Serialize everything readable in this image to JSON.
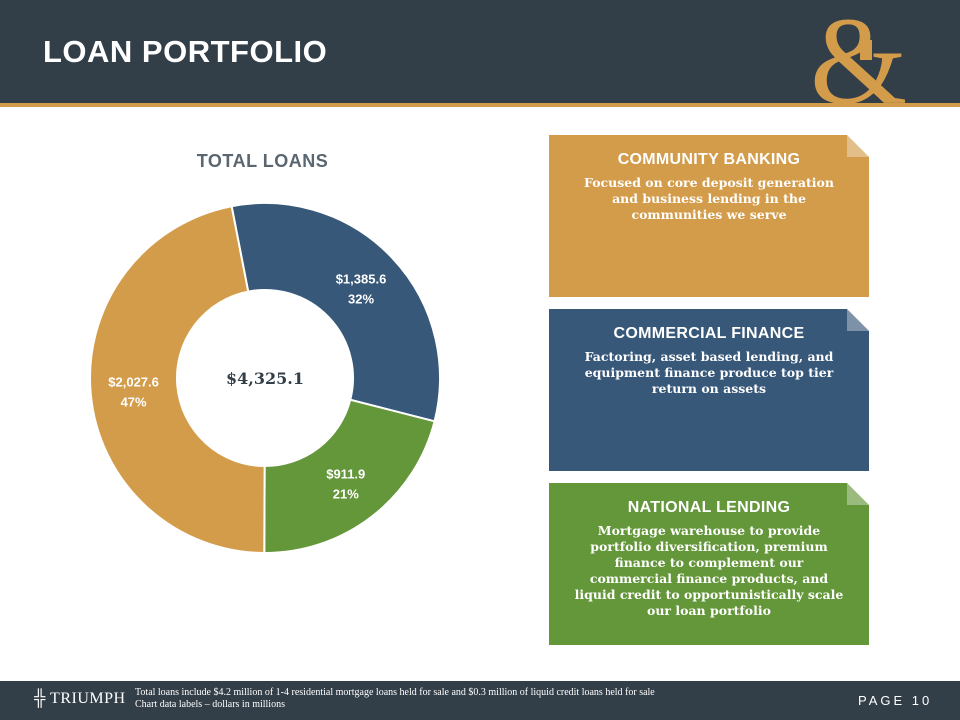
{
  "header": {
    "title": "LOAN PORTFOLIO"
  },
  "chart_data": {
    "type": "pie",
    "title": "TOTAL LOANS",
    "center_label": "$4,325.1",
    "slices": [
      {
        "value": 1385.6,
        "label": "$1,385.6",
        "percent": "32%",
        "color": "#38587a"
      },
      {
        "value": 911.9,
        "label": "$911.9",
        "percent": "21%",
        "color": "#64963a"
      },
      {
        "value": 2027.6,
        "label": "$2,027.6",
        "percent": "47%",
        "color": "#d39c4a"
      }
    ]
  },
  "cards": [
    {
      "title": "COMMUNITY BANKING",
      "text": "Focused on core deposit generation and business lending in the communities we serve",
      "color": "#d39c4a"
    },
    {
      "title": "COMMERCIAL FINANCE",
      "text": "Factoring, asset based lending, and equipment finance produce top tier return on assets",
      "color": "#38587a"
    },
    {
      "title": "NATIONAL LENDING",
      "text": "Mortgage warehouse to provide portfolio diversification, premium finance to complement our commercial finance products, and liquid credit to opportunistically scale our loan portfolio",
      "color": "#64963a"
    }
  ],
  "footer": {
    "brand": "TRIUMPH",
    "note1": "Total loans include $4.2 million of 1-4 residential mortgage loans held for sale and $0.3 million of liquid credit loans held for sale",
    "note2": "Chart data labels – dollars in millions",
    "page": "PAGE 10"
  }
}
